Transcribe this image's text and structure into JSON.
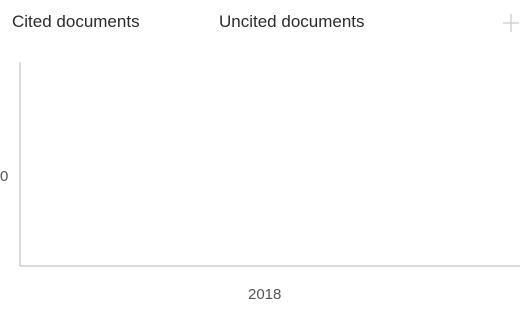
{
  "legend": {
    "items": [
      {
        "label": "Cited documents"
      },
      {
        "label": "Uncited documents"
      }
    ],
    "menu_icon": "crosshair-icon"
  },
  "chart_data": {
    "type": "bar",
    "categories": [
      "2018"
    ],
    "series": [
      {
        "name": "Cited documents",
        "values": [
          0
        ]
      },
      {
        "name": "Uncited documents",
        "values": [
          0
        ]
      }
    ],
    "y_tick_label": "0",
    "x_tick_label": "2018",
    "grid": false
  },
  "colors": {
    "axis": "#b5b5b5",
    "text": "#2b2b2b"
  }
}
